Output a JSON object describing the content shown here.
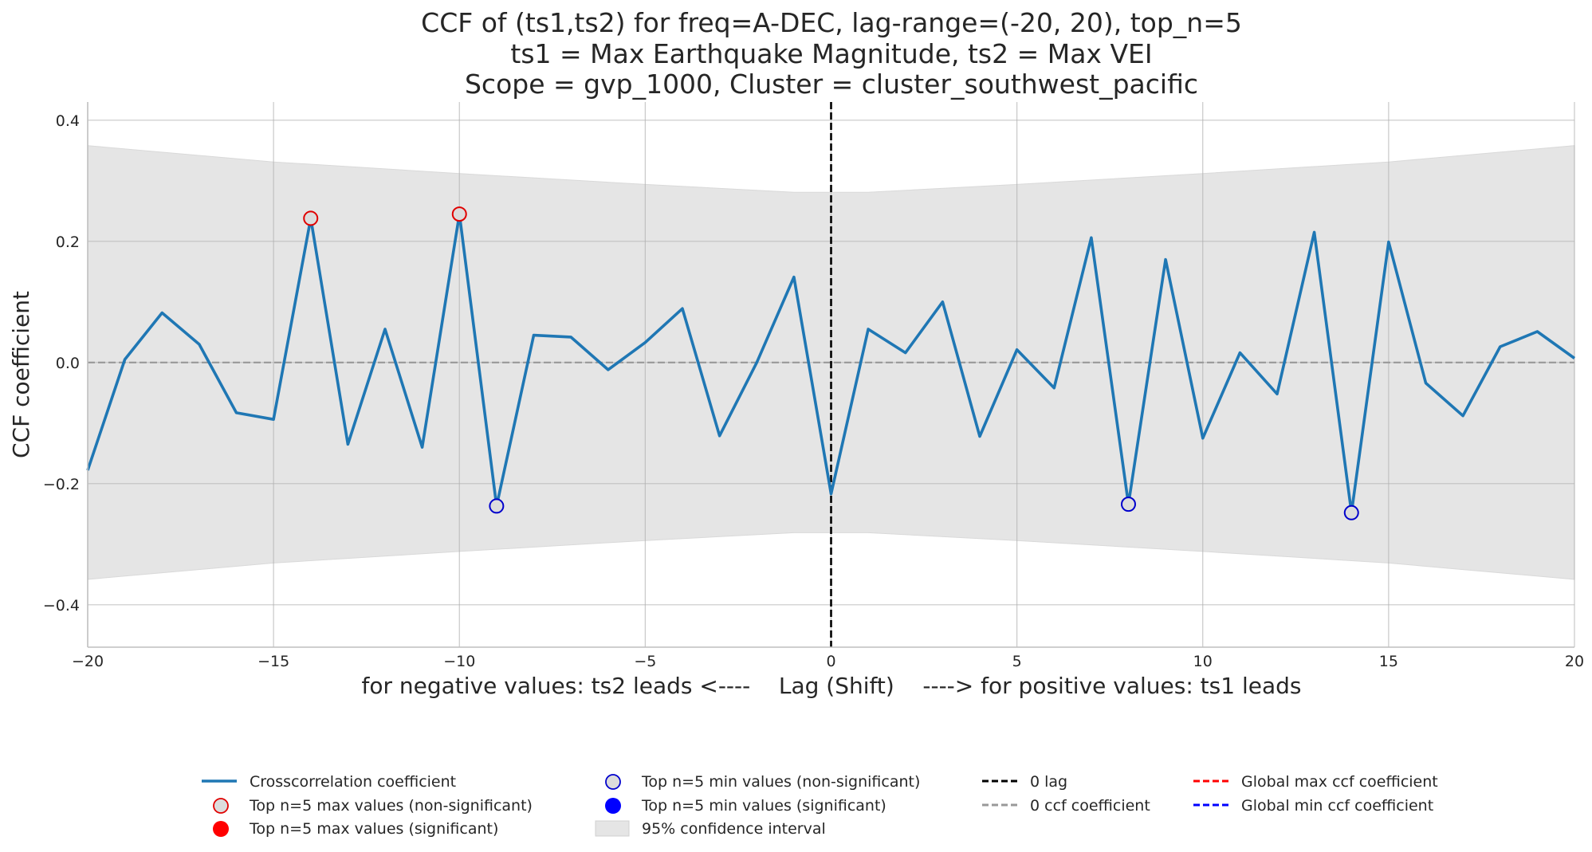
{
  "chart_data": {
    "type": "line",
    "title_lines": [
      "CCF of (ts1,ts2) for freq=A-DEC, lag-range=(-20, 20), top_n=5",
      "ts1 = Max Earthquake Magnitude, ts2 = Max VEI",
      "Scope = gvp_1000, Cluster = cluster_southwest_pacific"
    ],
    "xlabel": "for negative values: ts2 leads <----    Lag (Shift)    ----> for positive values: ts1 leads",
    "ylabel": "CCF coefficient",
    "xlim": [
      -20,
      20
    ],
    "ylim": [
      -0.47,
      0.43
    ],
    "xticks": [
      -20,
      -15,
      -10,
      -5,
      0,
      5,
      10,
      15,
      20
    ],
    "xtick_labels": [
      "−20",
      "−15",
      "−10",
      "−5",
      "0",
      "5",
      "10",
      "15",
      "20"
    ],
    "yticks": [
      -0.4,
      -0.2,
      0.0,
      0.2,
      0.4
    ],
    "ytick_labels": [
      "−0.4",
      "−0.2",
      "0.0",
      "0.2",
      "0.4"
    ],
    "grid": true,
    "series": [
      {
        "name": "Crosscorrelation coefficient",
        "color": "#1f77b4",
        "x": [
          -20,
          -19,
          -18,
          -17,
          -16,
          -15,
          -14,
          -13,
          -12,
          -11,
          -10,
          -9,
          -8,
          -7,
          -6,
          -5,
          -4,
          -3,
          -2,
          -1,
          0,
          1,
          2,
          3,
          4,
          5,
          6,
          7,
          8,
          9,
          10,
          11,
          12,
          13,
          14,
          15,
          16,
          17,
          18,
          19,
          20
        ],
        "y": [
          -0.178,
          0.005,
          0.082,
          0.03,
          -0.083,
          -0.094,
          0.238,
          -0.135,
          0.055,
          -0.14,
          0.245,
          -0.237,
          0.045,
          0.042,
          -0.012,
          0.033,
          0.089,
          -0.121,
          0.0,
          0.141,
          -0.217,
          0.055,
          0.016,
          0.1,
          -0.122,
          0.021,
          -0.042,
          0.206,
          -0.234,
          0.17,
          -0.125,
          0.016,
          -0.052,
          0.215,
          -0.248,
          0.199,
          -0.034,
          -0.088,
          0.026,
          0.051,
          0.007
        ]
      }
    ],
    "confidence_interval": {
      "x": [
        -20,
        -15,
        -10,
        -5,
        -1,
        0,
        1,
        5,
        10,
        15,
        20
      ],
      "upper": [
        0.358,
        0.331,
        0.312,
        0.294,
        0.281,
        0.281,
        0.281,
        0.294,
        0.312,
        0.331,
        0.358
      ]
    },
    "top_max_nonsig": [
      {
        "x": -14,
        "y": 0.238
      },
      {
        "x": -10,
        "y": 0.245
      }
    ],
    "top_min_nonsig": [
      {
        "x": -9,
        "y": -0.237
      },
      {
        "x": 8,
        "y": -0.234
      },
      {
        "x": 14,
        "y": -0.248
      }
    ],
    "zero_lag_x": 0,
    "zero_coef_y": 0.0,
    "legend": [
      {
        "label": "Crosscorrelation coefficient",
        "kind": "line",
        "color": "#1f77b4"
      },
      {
        "label": "Top n=5 max values (non-significant)",
        "kind": "ring",
        "color": "#e00000"
      },
      {
        "label": "Top n=5 max values (significant)",
        "kind": "dot",
        "color": "#ff0000"
      },
      {
        "label": "Top n=5 min values (non-significant)",
        "kind": "ring",
        "color": "#0000cc"
      },
      {
        "label": "Top n=5 min values (significant)",
        "kind": "dot",
        "color": "#0000ff"
      },
      {
        "label": "95% confidence interval",
        "kind": "patch",
        "color": "#e5e5e5"
      },
      {
        "label": "0 lag",
        "kind": "dash",
        "color": "#000000"
      },
      {
        "label": "0 ccf coefficient",
        "kind": "dash",
        "color": "#999999"
      },
      {
        "label": "Global max ccf coefficient",
        "kind": "dash",
        "color": "#ff0000"
      },
      {
        "label": "Global min ccf coefficient",
        "kind": "dash",
        "color": "#0000ff"
      }
    ],
    "legend_placement": "bottom-center"
  }
}
